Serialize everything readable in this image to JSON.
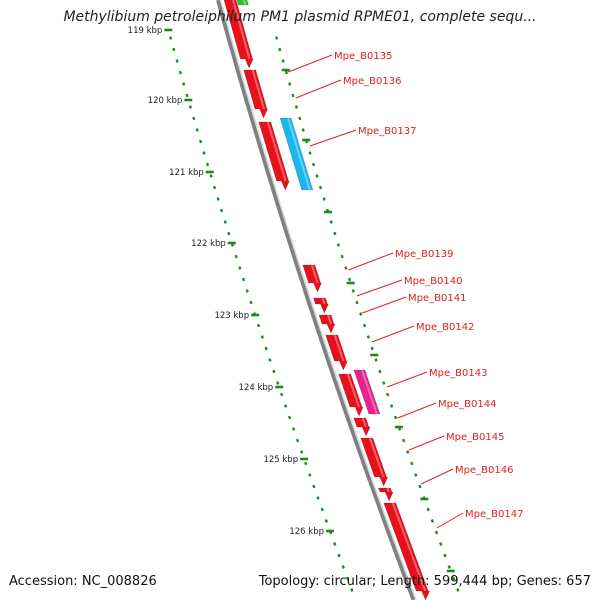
{
  "title": "Methylibium petroleiphilum PM1 plasmid RPME01, complete sequ...",
  "footer": {
    "accession": "Accession: NC_008826",
    "summary": "Topology: circular; Length: 599,444 bp; Genes: 657"
  },
  "colors": {
    "forward_gene": "#e8101a",
    "highlight_blue": "#1ab6ee",
    "highlight_pink": "#e82090",
    "backbone": "#808080",
    "ticks": "#1a8a1a",
    "label": "#e0201c",
    "top_green": "#2fbf2f"
  },
  "axis": {
    "unit": "kbp",
    "ticks": [
      {
        "kbp": 119,
        "label": "119 kbp"
      },
      {
        "kbp": 120,
        "label": "120 kbp"
      },
      {
        "kbp": 121,
        "label": "121 kbp"
      },
      {
        "kbp": 122,
        "label": "122 kbp"
      },
      {
        "kbp": 123,
        "label": "123 kbp"
      },
      {
        "kbp": 124,
        "label": "124 kbp"
      },
      {
        "kbp": 125,
        "label": "125 kbp"
      },
      {
        "kbp": 126,
        "label": "126 kbp"
      }
    ]
  },
  "genes": [
    {
      "id": "Mpe_B0135",
      "label": "Mpe_B0135"
    },
    {
      "id": "Mpe_B0136",
      "label": "Mpe_B0136"
    },
    {
      "id": "Mpe_B0137",
      "label": "Mpe_B0137"
    },
    {
      "id": "Mpe_B0139",
      "label": "Mpe_B0139"
    },
    {
      "id": "Mpe_B0140",
      "label": "Mpe_B0140"
    },
    {
      "id": "Mpe_B0141",
      "label": "Mpe_B0141"
    },
    {
      "id": "Mpe_B0142",
      "label": "Mpe_B0142"
    },
    {
      "id": "Mpe_B0143",
      "label": "Mpe_B0143"
    },
    {
      "id": "Mpe_B0144",
      "label": "Mpe_B0144"
    },
    {
      "id": "Mpe_B0145",
      "label": "Mpe_B0145"
    },
    {
      "id": "Mpe_B0146",
      "label": "Mpe_B0146"
    },
    {
      "id": "Mpe_B0147",
      "label": "Mpe_B0147"
    }
  ]
}
